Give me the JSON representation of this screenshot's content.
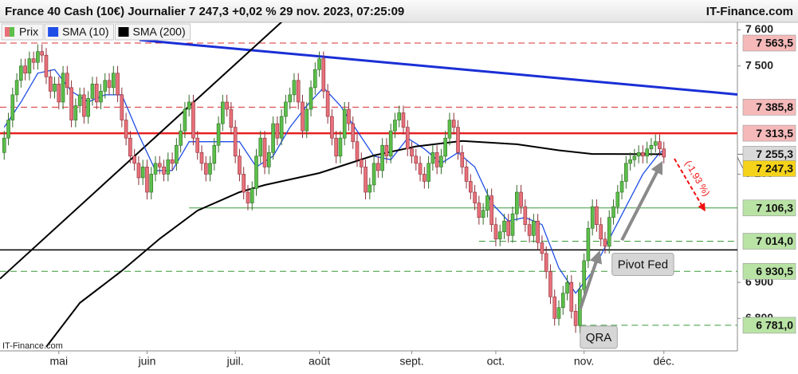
{
  "chart_data": {
    "type": "candlestick",
    "title": "France 40 Cash (10€) Journalier 7 247,3 +0,02 % 29 nov. 2023, 07:25:09",
    "source": "IT-Finance.com",
    "watermark": "IT-Finance.com",
    "xlim": [
      -1,
      174.5
    ],
    "ylim": [
      6710,
      7621
    ],
    "xticks": [
      {
        "value": 13,
        "label": "mai"
      },
      {
        "value": 34,
        "label": "juin"
      },
      {
        "value": 55,
        "label": "juil."
      },
      {
        "value": 75,
        "label": "août"
      },
      {
        "value": 97,
        "label": "sept."
      },
      {
        "value": 117,
        "label": "oct."
      },
      {
        "value": 138,
        "label": "nov."
      },
      {
        "value": 157,
        "label": "déc."
      }
    ],
    "yticks": [
      {
        "value": 7600,
        "label": "7 600"
      },
      {
        "value": 7500,
        "label": "7 500"
      },
      {
        "value": 7200,
        "label": "7 200"
      },
      {
        "value": 6900,
        "label": "6 900"
      },
      {
        "value": 6800,
        "label": "6 800"
      }
    ],
    "candles": {
      "name": "Prix",
      "up_color": "#5cbf4a",
      "down_color": "#e8707a",
      "open": [
        7260,
        7300,
        7350,
        7420,
        7460,
        7500,
        7480,
        7520,
        7510,
        7540,
        7530,
        7470,
        7430,
        7450,
        7400,
        7480,
        7440,
        7350,
        7390,
        7420,
        7360,
        7410,
        7450,
        7400,
        7430,
        7460,
        7440,
        7480,
        7420,
        7350,
        7300,
        7250,
        7230,
        7190,
        7220,
        7150,
        7200,
        7230,
        7220,
        7200,
        7240,
        7230,
        7280,
        7320,
        7380,
        7400,
        7300,
        7260,
        7230,
        7200,
        7230,
        7280,
        7340,
        7400,
        7380,
        7330,
        7250,
        7200,
        7150,
        7120,
        7160,
        7250,
        7300,
        7220,
        7260,
        7340,
        7300,
        7360,
        7400,
        7420,
        7460,
        7400,
        7320,
        7380,
        7440,
        7490,
        7520,
        7430,
        7360,
        7300,
        7250,
        7300,
        7380,
        7340,
        7290,
        7240,
        7220,
        7150,
        7170,
        7230,
        7210,
        7280,
        7250,
        7320,
        7350,
        7370,
        7330,
        7270,
        7250,
        7230,
        7200,
        7180,
        7230,
        7260,
        7220,
        7250,
        7300,
        7350,
        7330,
        7260,
        7220,
        7180,
        7150,
        7120,
        7080,
        7100,
        7140,
        7060,
        7020,
        7040,
        7070,
        7030,
        7090,
        7150,
        7110,
        7060,
        7030,
        7070,
        7010,
        6980,
        6930,
        6860,
        6800,
        6830,
        6870,
        6900,
        6820,
        6780,
        6880,
        6960,
        7050,
        7110,
        7060,
        7020,
        7000,
        7080,
        7110,
        7150,
        7180,
        7230,
        7240,
        7250,
        7260,
        7250,
        7270,
        7280,
        7290,
        7270
      ],
      "high": [
        7320,
        7370,
        7440,
        7480,
        7520,
        7520,
        7540,
        7540,
        7560,
        7560,
        7550,
        7490,
        7470,
        7470,
        7500,
        7500,
        7460,
        7410,
        7440,
        7440,
        7430,
        7470,
        7470,
        7450,
        7480,
        7480,
        7500,
        7500,
        7440,
        7370,
        7320,
        7270,
        7250,
        7240,
        7240,
        7220,
        7250,
        7250,
        7240,
        7260,
        7260,
        7300,
        7340,
        7400,
        7420,
        7420,
        7320,
        7280,
        7250,
        7250,
        7300,
        7360,
        7420,
        7420,
        7400,
        7350,
        7270,
        7220,
        7170,
        7180,
        7270,
        7320,
        7320,
        7280,
        7360,
        7360,
        7380,
        7420,
        7440,
        7480,
        7480,
        7420,
        7400,
        7460,
        7510,
        7540,
        7540,
        7450,
        7380,
        7320,
        7320,
        7400,
        7400,
        7360,
        7310,
        7260,
        7240,
        7190,
        7250,
        7250,
        7300,
        7300,
        7340,
        7370,
        7390,
        7390,
        7350,
        7290,
        7270,
        7250,
        7220,
        7250,
        7280,
        7280,
        7270,
        7320,
        7370,
        7370,
        7350,
        7280,
        7240,
        7200,
        7170,
        7140,
        7120,
        7160,
        7160,
        7080,
        7060,
        7090,
        7090,
        7110,
        7170,
        7170,
        7130,
        7080,
        7090,
        7090,
        7030,
        7000,
        6950,
        6880,
        6850,
        6890,
        6920,
        6920,
        6840,
        6900,
        6980,
        7070,
        7130,
        7130,
        7080,
        7040,
        7100,
        7130,
        7170,
        7200,
        7250,
        7260,
        7270,
        7280,
        7280,
        7290,
        7300,
        7310,
        7310,
        7290
      ],
      "low": [
        7240,
        7280,
        7330,
        7400,
        7440,
        7460,
        7460,
        7490,
        7490,
        7510,
        7450,
        7410,
        7410,
        7380,
        7380,
        7420,
        7330,
        7330,
        7370,
        7340,
        7340,
        7390,
        7380,
        7380,
        7410,
        7420,
        7420,
        7400,
        7330,
        7280,
        7230,
        7210,
        7170,
        7170,
        7130,
        7130,
        7180,
        7200,
        7180,
        7180,
        7210,
        7210,
        7260,
        7300,
        7360,
        7280,
        7240,
        7210,
        7180,
        7180,
        7210,
        7260,
        7320,
        7360,
        7310,
        7230,
        7180,
        7130,
        7100,
        7100,
        7140,
        7230,
        7200,
        7200,
        7240,
        7280,
        7280,
        7340,
        7380,
        7400,
        7380,
        7300,
        7300,
        7360,
        7420,
        7470,
        7410,
        7340,
        7280,
        7230,
        7230,
        7280,
        7320,
        7270,
        7220,
        7200,
        7130,
        7130,
        7150,
        7190,
        7190,
        7230,
        7230,
        7300,
        7330,
        7310,
        7250,
        7230,
        7210,
        7180,
        7160,
        7160,
        7210,
        7200,
        7200,
        7230,
        7280,
        7310,
        7240,
        7200,
        7160,
        7130,
        7100,
        7060,
        7060,
        7080,
        7040,
        7000,
        7000,
        7020,
        7010,
        7010,
        7070,
        7090,
        7040,
        7010,
        7010,
        6990,
        6960,
        6910,
        6840,
        6780,
        6780,
        6810,
        6850,
        6800,
        6760,
        6760,
        6860,
        6940,
        7030,
        7040,
        7000,
        6980,
        6980,
        7060,
        7090,
        7130,
        7160,
        7210,
        7220,
        7230,
        7230,
        7230,
        7250,
        7260,
        7250,
        7230
      ],
      "close": [
        7300,
        7350,
        7420,
        7460,
        7500,
        7480,
        7520,
        7510,
        7540,
        7530,
        7470,
        7430,
        7450,
        7400,
        7480,
        7440,
        7350,
        7390,
        7420,
        7360,
        7410,
        7450,
        7400,
        7430,
        7460,
        7440,
        7480,
        7420,
        7350,
        7300,
        7250,
        7230,
        7190,
        7220,
        7150,
        7200,
        7230,
        7220,
        7200,
        7240,
        7230,
        7280,
        7320,
        7380,
        7400,
        7300,
        7260,
        7230,
        7200,
        7230,
        7280,
        7340,
        7400,
        7380,
        7330,
        7250,
        7200,
        7150,
        7120,
        7160,
        7250,
        7300,
        7220,
        7260,
        7340,
        7300,
        7360,
        7400,
        7420,
        7460,
        7400,
        7320,
        7380,
        7440,
        7490,
        7520,
        7430,
        7360,
        7300,
        7250,
        7300,
        7380,
        7340,
        7290,
        7240,
        7220,
        7150,
        7170,
        7230,
        7210,
        7280,
        7250,
        7320,
        7350,
        7370,
        7330,
        7270,
        7250,
        7230,
        7200,
        7180,
        7230,
        7260,
        7220,
        7250,
        7300,
        7350,
        7330,
        7260,
        7220,
        7180,
        7150,
        7120,
        7080,
        7100,
        7140,
        7060,
        7020,
        7040,
        7070,
        7030,
        7090,
        7150,
        7110,
        7060,
        7030,
        7070,
        7010,
        6980,
        6930,
        6860,
        6800,
        6830,
        6870,
        6900,
        6820,
        6780,
        6880,
        6960,
        7050,
        7110,
        7060,
        7020,
        7000,
        7080,
        7110,
        7150,
        7180,
        7230,
        7240,
        7250,
        7260,
        7250,
        7270,
        7280,
        7290,
        7270,
        7247.3
      ]
    },
    "series": [
      {
        "name": "SMA (10)",
        "color": "#1f4ee6",
        "x": [
          0,
          4,
          8,
          12,
          16,
          20,
          24,
          28,
          32,
          36,
          40,
          44,
          48,
          52,
          56,
          60,
          64,
          68,
          72,
          76,
          80,
          84,
          88,
          92,
          96,
          100,
          104,
          108,
          112,
          116,
          120,
          124,
          128,
          132,
          136,
          140,
          144,
          148,
          152,
          156,
          157
        ],
        "values": [
          7330,
          7400,
          7480,
          7490,
          7430,
          7400,
          7420,
          7420,
          7310,
          7210,
          7210,
          7290,
          7290,
          7290,
          7290,
          7220,
          7250,
          7330,
          7390,
          7440,
          7390,
          7320,
          7250,
          7240,
          7300,
          7270,
          7230,
          7260,
          7220,
          7120,
          7070,
          7080,
          7060,
          6940,
          6870,
          6930,
          7020,
          7110,
          7200,
          7260,
          7265
        ]
      },
      {
        "name": "SMA (200)",
        "color": "#000000",
        "x": [
          10,
          18,
          28,
          37,
          46,
          56,
          62,
          75,
          88,
          98,
          109,
          122,
          132,
          140,
          157
        ],
        "values": [
          6721,
          6843,
          6932,
          7021,
          7099,
          7150,
          7170,
          7203,
          7252,
          7277,
          7292,
          7283,
          7266,
          7256,
          7255.3
        ]
      }
    ],
    "levels": [
      {
        "value": 7563.5,
        "label": "7 563,5",
        "color": "#d93030",
        "box": "#f6b9b9",
        "dashed": true,
        "width": 1
      },
      {
        "value": 7385.8,
        "label": "7 385,8",
        "color": "#d93030",
        "box": "#f6b9b9",
        "dashed": true,
        "width": 1
      },
      {
        "value": 7313.5,
        "label": "7 313,5",
        "color": "#e82020",
        "box": "#f6b9b9",
        "dashed": false,
        "width": 2.5
      },
      {
        "value": 7106.3,
        "label": "7 106,3",
        "color": "#3a9a3a",
        "box": "#b9e3a5",
        "dashed": false,
        "width": 1,
        "x_start": 44
      },
      {
        "value": 7014,
        "label": "7 014,0",
        "color": "#3a9a3a",
        "box": "#b9e3a5",
        "dashed": true,
        "width": 1,
        "x_start": 113
      },
      {
        "value": 6930.5,
        "label": "6 930,5",
        "color": "#3a9a3a",
        "box": "#b9e3a5",
        "dashed": true,
        "width": 1
      },
      {
        "value": 6781,
        "label": "6 781,0",
        "color": "#3a9a3a",
        "box": "#b9e3a5",
        "dashed": true,
        "width": 1,
        "x_start": 137
      }
    ],
    "price_tags": [
      {
        "value": 7255.3,
        "label": "7 255,3",
        "box": "#d9d9d9"
      },
      {
        "value": 7247.3,
        "label": "7 247,3",
        "box": "#f5d31a"
      }
    ],
    "trendlines": [
      {
        "x": [
          32.2,
          174.5
        ],
        "values": [
          7572,
          7421
        ],
        "color": "#1a2fd6",
        "width": 3
      },
      {
        "x": [
          -1,
          66.4
        ],
        "values": [
          6910,
          7626
        ],
        "color": "#000000",
        "width": 2
      },
      {
        "x": [
          -1,
          174.5
        ],
        "values": [
          6990,
          6990
        ],
        "color": "#000000",
        "width": 1.5
      }
    ],
    "arrows": [
      {
        "x": [
          137.1,
          141.3
        ],
        "values": [
          6826,
          6972
        ],
        "color": "#8a8a8a"
      },
      {
        "x": [
          147,
          156
        ],
        "values": [
          7017,
          7221
        ],
        "color": "#8a8a8a"
      },
      {
        "x": [
          159.5,
          166.4
        ],
        "values": [
          7243,
          7106
        ],
        "color": "#f01010",
        "label": "(-1,93 %)"
      }
    ],
    "annotations": [
      {
        "text": "Pivot Fed",
        "x": 152,
        "value": 6950
      },
      {
        "text": "QRA",
        "x": 141.5,
        "value": 6748
      }
    ]
  }
}
